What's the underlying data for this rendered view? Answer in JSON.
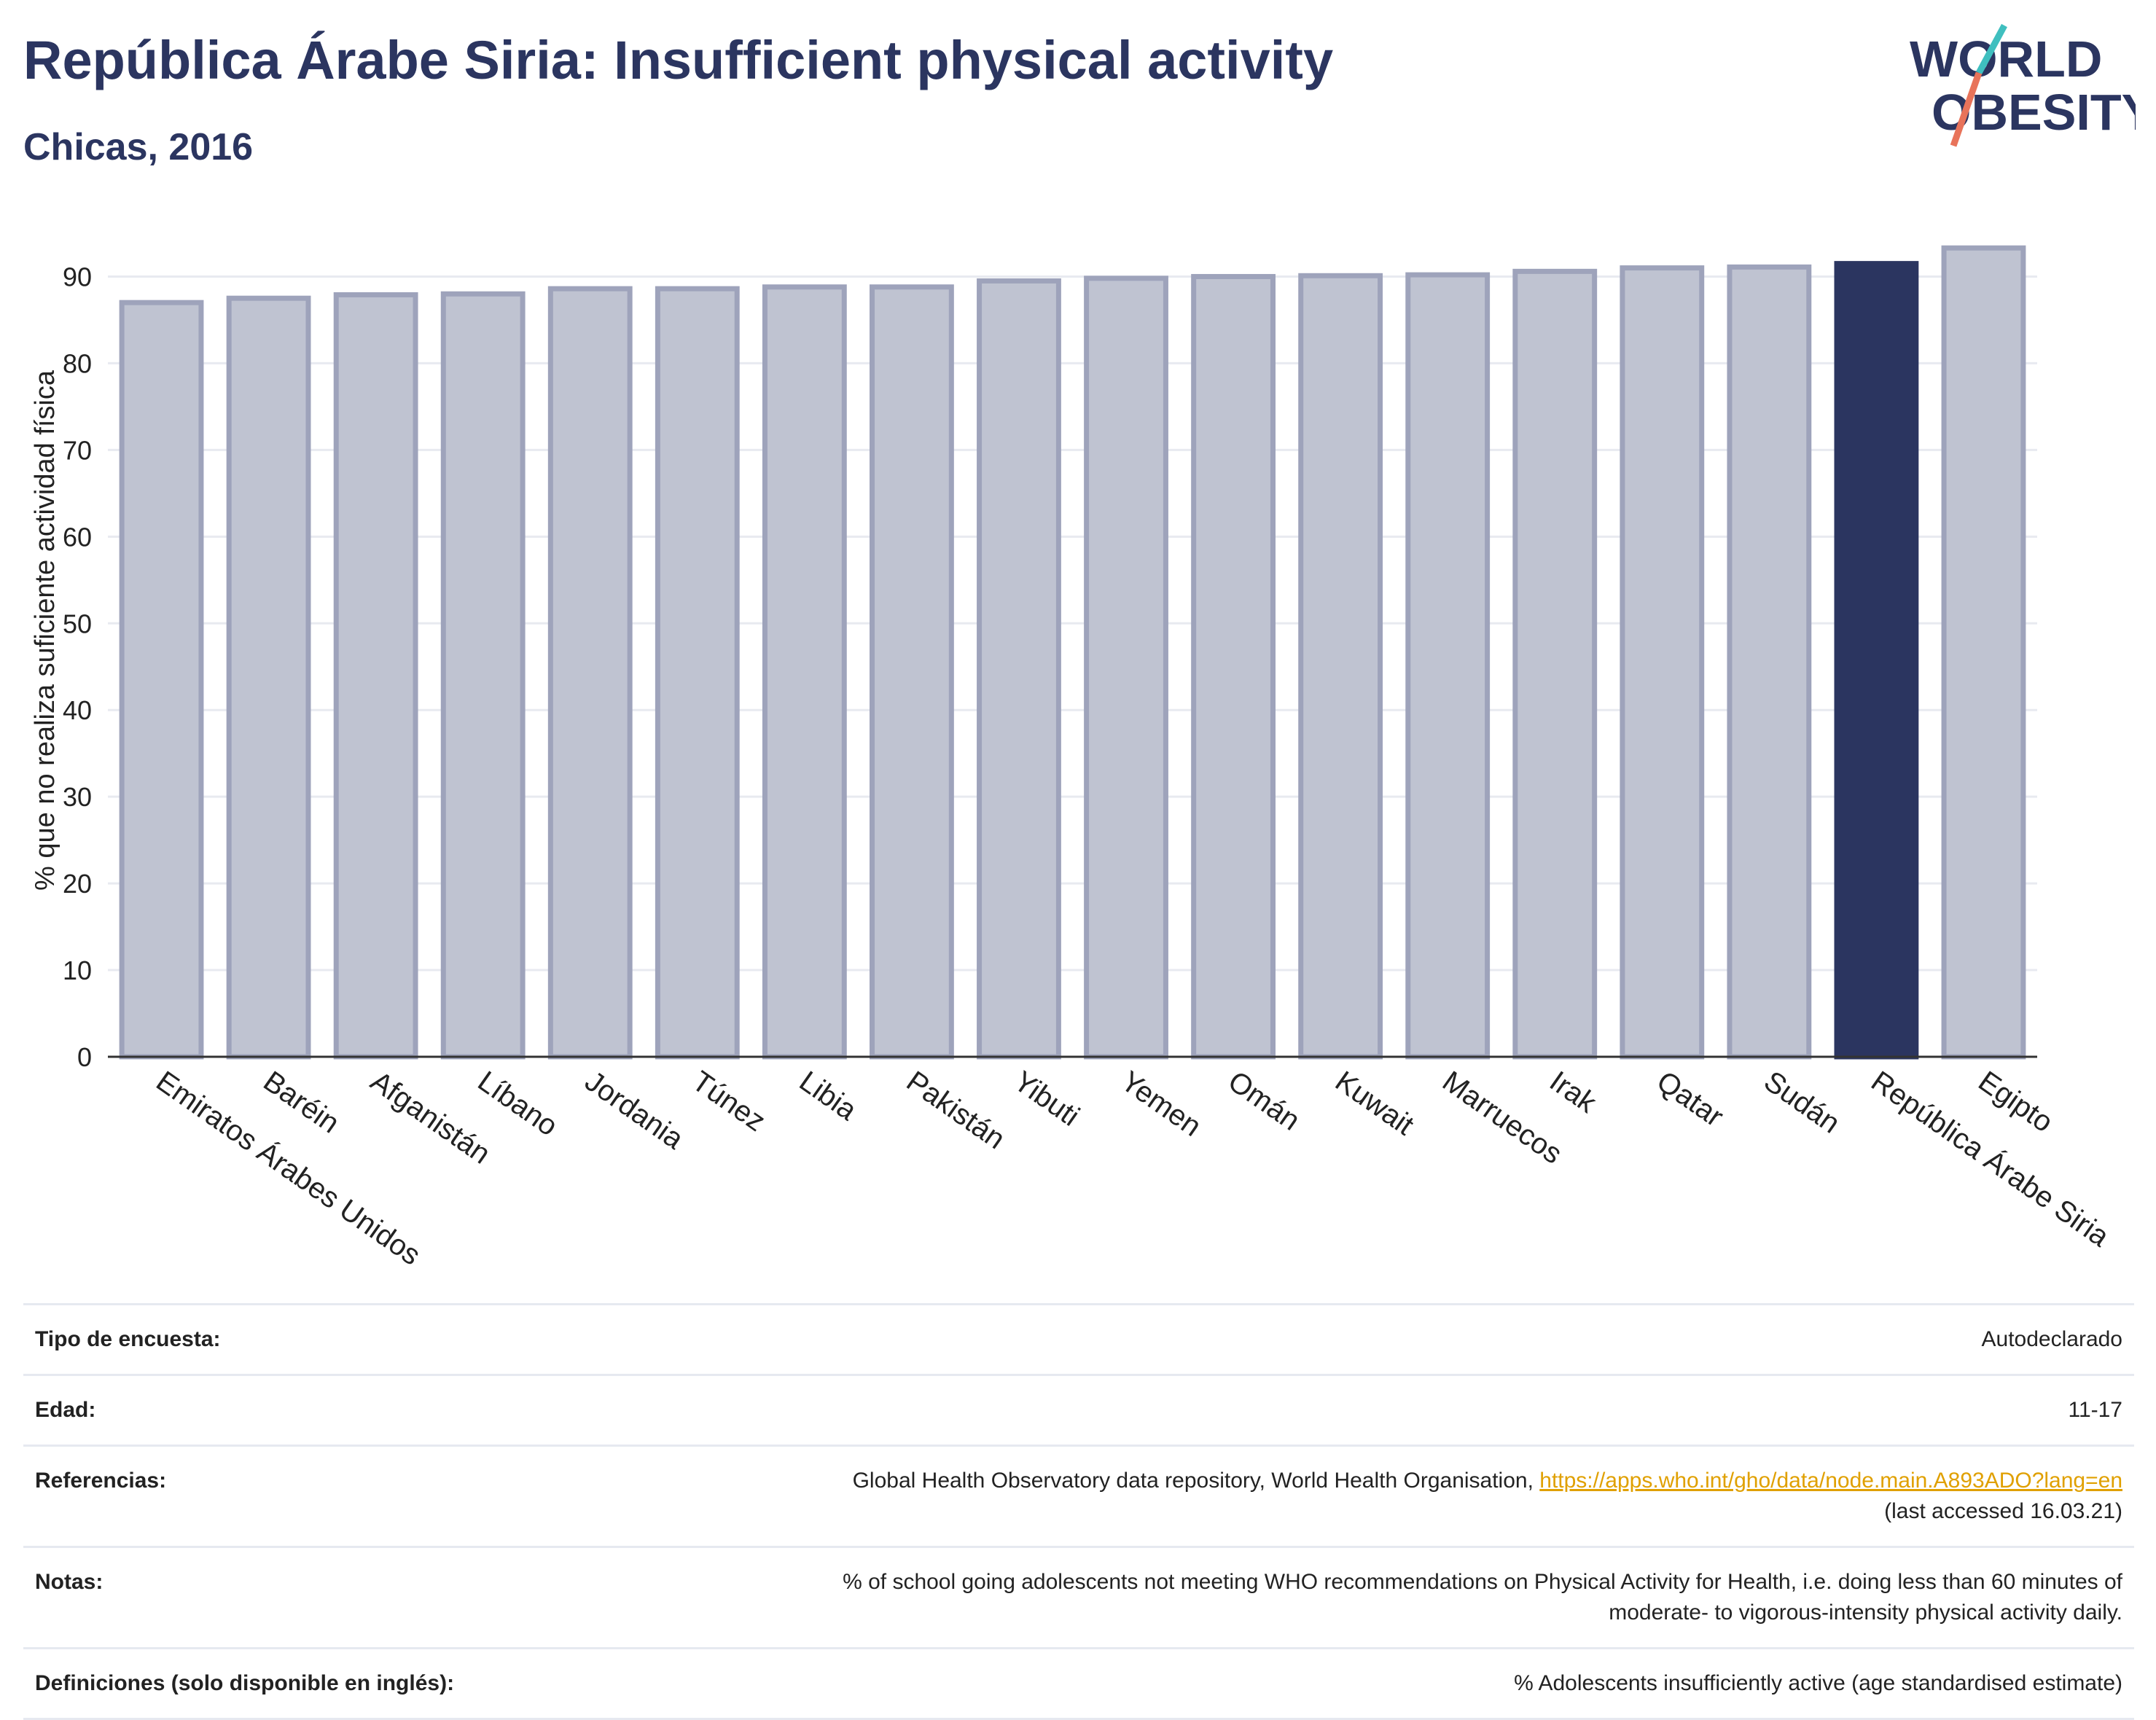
{
  "header": {
    "title": "República Árabe Siria: Insufficient physical activity",
    "subtitle": "Chicas, 2016"
  },
  "logo": {
    "line1": "WORLD",
    "line2": "OBESITY"
  },
  "colors": {
    "bar": "#bfc3d1",
    "bar_border": "#9ea3bb",
    "highlight": "#2b3560",
    "grid": "#e8eaf0"
  },
  "chart_data": {
    "type": "bar",
    "title": "",
    "xlabel": "",
    "ylabel": "% que no realiza suficiente actividad física",
    "ylim": [
      0,
      95
    ],
    "yticks": [
      0,
      10,
      20,
      30,
      40,
      50,
      60,
      70,
      80,
      90
    ],
    "grid": true,
    "categories": [
      "Emiratos Árabes Unidos",
      "Baréin",
      "Afganistán",
      "Líbano",
      "Jordania",
      "Túnez",
      "Libia",
      "Pakistán",
      "Yibuti",
      "Yemen",
      "Omán",
      "Kuwait",
      "Marruecos",
      "Irak",
      "Qatar",
      "Sudán",
      "República Árabe Siria",
      "Egipto"
    ],
    "values": [
      87.0,
      87.5,
      87.9,
      88.0,
      88.6,
      88.6,
      88.8,
      88.8,
      89.5,
      89.8,
      90.0,
      90.1,
      90.2,
      90.6,
      91.0,
      91.1,
      91.5,
      93.3
    ],
    "highlight": "República Árabe Siria"
  },
  "info": {
    "survey_label": "Tipo de encuesta:",
    "survey_value": "Autodeclarado",
    "age_label": "Edad:",
    "age_value": "11-17",
    "ref_label": "Referencias:",
    "ref_text": "Global Health Observatory data repository, World Health Organisation, ",
    "ref_link": "https://apps.who.int/gho/data/node.main.A893ADO?lang=en",
    "ref_accessed": "(last accessed 16.03.21)",
    "notes_label": "Notas:",
    "notes_line1": "% of school going adolescents not meeting WHO recommendations on Physical Activity for Health, i.e. doing less than 60 minutes of",
    "notes_line2": "moderate- to vigorous-intensity physical activity daily.",
    "def_label": "Definiciones (solo disponible en inglés):",
    "def_value": "% Adolescents insufficiently active (age standardised estimate)"
  }
}
